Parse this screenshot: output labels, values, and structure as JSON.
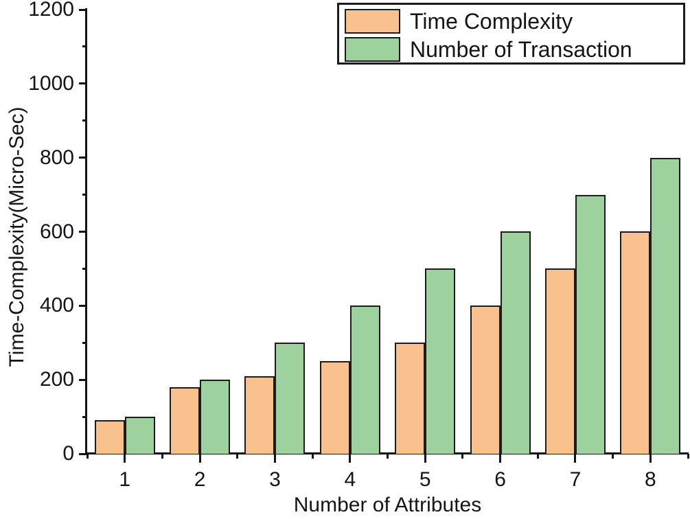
{
  "chart_data": {
    "type": "bar",
    "title": "",
    "categories": [
      "1",
      "2",
      "3",
      "4",
      "5",
      "6",
      "7",
      "8"
    ],
    "series": [
      {
        "name": "Time Complexity",
        "color": "#F9C18E",
        "values": [
          90,
          180,
          210,
          250,
          300,
          400,
          500,
          600
        ]
      },
      {
        "name": "Number of Transaction",
        "color": "#9DD29E",
        "values": [
          100,
          200,
          300,
          400,
          500,
          600,
          700,
          800
        ]
      }
    ],
    "xlabel": "Number of Attributes",
    "ylabel": "Time-Complexity(Micro-Sec)",
    "ylim": [
      0,
      1200
    ],
    "y_major_step": 200,
    "y_minor_step": 100,
    "y_tick_labels": [
      "0",
      "200",
      "400",
      "600",
      "800",
      "1000",
      "1200"
    ],
    "x_tick_labels": [
      "1",
      "2",
      "3",
      "4",
      "5",
      "6",
      "7",
      "8"
    ],
    "grid": false,
    "legend_position": "top-right",
    "colors": {
      "bar_border": "#1b1b1b",
      "axis": "#121217",
      "text": "#14141c",
      "background": "#ffffff"
    }
  }
}
